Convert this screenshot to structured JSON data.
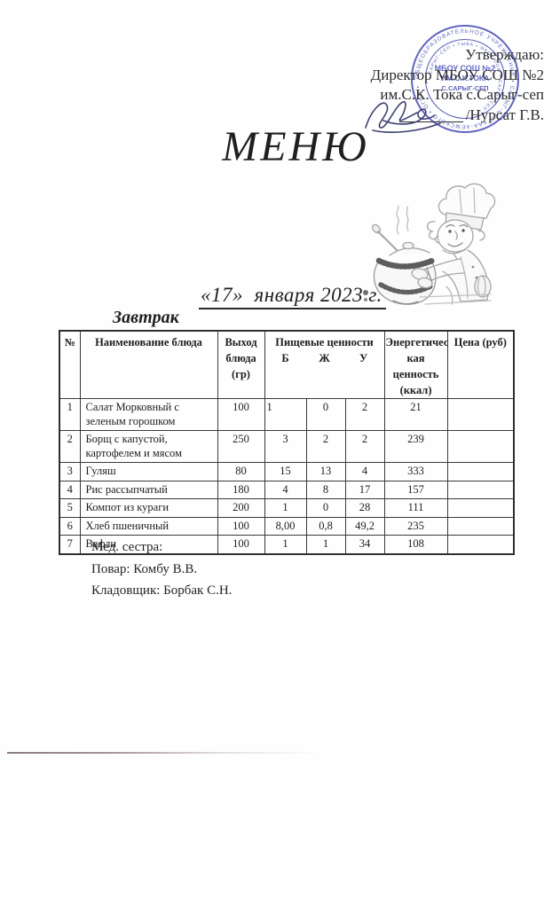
{
  "approval": {
    "line1": "Утверждаю:",
    "line2": "Директор МБОУ СОШ №2",
    "line3": "им.С.К. Тока с.Сарыг-сеп",
    "signature_name": "/Нурсат Г.В."
  },
  "stamp": {
    "color": "#4b50b5",
    "ring_text_outer": "ОБЩЕОБРАЗОВАТЕЛЬНОЕ УЧРЕЖДЕНИЕ • САРЫГ-СЕП КАА-ХЕМСКОГО • ОГРН •",
    "ring_text_inner": "• САРЫГ-СЕП • ТЫВА • МБОУ СОШ • САРЫГ-СЕП •",
    "center_line1": "МБОУ СОШ №2",
    "center_line2": "ИМ.С.К.ТОКА",
    "center_line3": "С.САРЫГ-СЕП"
  },
  "title": "МЕНЮ",
  "date_line": "«17»  января 2023 г.",
  "meal_heading": "Завтрак",
  "table": {
    "col_num": "№",
    "col_dish": "Наименование блюда",
    "col_out_l1": "Выход",
    "col_out_l2": "блюда",
    "col_out_l3": "(гр)",
    "col_nutrition": "Пищевые ценности",
    "col_b": "Б",
    "col_zh": "Ж",
    "col_u": "У",
    "col_energy_l1": "Энергетичес",
    "col_energy_l2": "кая ценность",
    "col_energy_l3": "(ккал)",
    "col_price": "Цена (руб)",
    "rows": [
      {
        "n": "1",
        "dish": "Салат Морковный с зеленым горошком",
        "out": "100",
        "b": "1",
        "zh": "0",
        "u": "2",
        "kcal": "21",
        "price": ""
      },
      {
        "n": "2",
        "dish": "Борщ с капустой, картофелем и мясом",
        "out": "250",
        "b": "3",
        "zh": "2",
        "u": "2",
        "kcal": "239",
        "price": ""
      },
      {
        "n": "3",
        "dish": "Гуляш",
        "out": "80",
        "b": "15",
        "zh": "13",
        "u": "4",
        "kcal": "333",
        "price": ""
      },
      {
        "n": "4",
        "dish": "Рис рассыпчатый",
        "out": "180",
        "b": "4",
        "zh": "8",
        "u": "17",
        "kcal": "157",
        "price": ""
      },
      {
        "n": "5",
        "dish": "Компот из кураги",
        "out": "200",
        "b": "1",
        "zh": "0",
        "u": "28",
        "kcal": "111",
        "price": ""
      },
      {
        "n": "6",
        "dish": "Хлеб пшеничный",
        "out": "100",
        "b": "8,00",
        "zh": "0,8",
        "u": "49,2",
        "kcal": "235",
        "price": ""
      },
      {
        "n": "7",
        "dish": "Вафли",
        "out": "100",
        "b": "1",
        "zh": "1",
        "u": "34",
        "kcal": "108",
        "price": ""
      }
    ]
  },
  "footer": {
    "line1": "Мед. сестра:",
    "line2": "Повар: Комбу В.В.",
    "line3": "Кладовщик: Борбак С.Н."
  }
}
